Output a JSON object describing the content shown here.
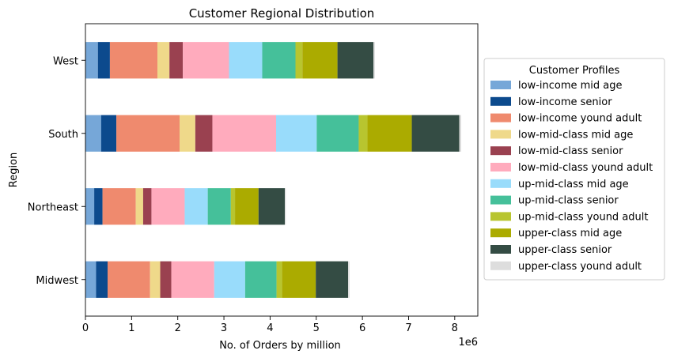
{
  "chart_data": {
    "type": "bar",
    "orientation": "horizontal",
    "stacked": true,
    "title": "Customer Regional Distribution",
    "xlabel": "No. of Orders by million",
    "ylabel": "Region",
    "x_offset_label": "1e6",
    "xlim": [
      0,
      8500000
    ],
    "x_ticks": [
      "0",
      "1",
      "2",
      "3",
      "4",
      "5",
      "6",
      "7",
      "8"
    ],
    "grid": false,
    "legend": {
      "title": "Customer Profiles",
      "placement": "right (outside plot)"
    },
    "categories": [
      "Midwest",
      "Northeast",
      "South",
      "West"
    ],
    "series": [
      {
        "name": "low-income mid age",
        "color": "#76a7d8",
        "values": [
          230000,
          190000,
          340000,
          270000
        ]
      },
      {
        "name": "low-income senior",
        "color": "#0c4a8d",
        "values": [
          250000,
          180000,
          330000,
          260000
        ]
      },
      {
        "name": "low-income yound adult",
        "color": "#ef8a6e",
        "values": [
          920000,
          720000,
          1370000,
          1030000
        ]
      },
      {
        "name": "low-mid-class mid age",
        "color": "#efd98a",
        "values": [
          220000,
          160000,
          340000,
          260000
        ]
      },
      {
        "name": "low-mid-class senior",
        "color": "#9a4150",
        "values": [
          240000,
          180000,
          370000,
          290000
        ]
      },
      {
        "name": "low-mid-class yound adult",
        "color": "#ffabbd",
        "values": [
          930000,
          720000,
          1380000,
          1000000
        ]
      },
      {
        "name": "up-mid-class mid age",
        "color": "#99dcfb",
        "values": [
          670000,
          500000,
          880000,
          720000
        ]
      },
      {
        "name": "up-mid-class senior",
        "color": "#45c09a",
        "values": [
          680000,
          500000,
          910000,
          720000
        ]
      },
      {
        "name": "up-mid-class yound adult",
        "color": "#b8c52f",
        "values": [
          120000,
          90000,
          190000,
          150000
        ]
      },
      {
        "name": "upper-class mid age",
        "color": "#abab00",
        "values": [
          730000,
          510000,
          960000,
          760000
        ]
      },
      {
        "name": "upper-class senior",
        "color": "#344c44",
        "values": [
          700000,
          570000,
          1030000,
          780000
        ]
      },
      {
        "name": "upper-class yound adult",
        "color": "#dddddd",
        "values": [
          30000,
          20000,
          40000,
          30000
        ]
      }
    ]
  }
}
